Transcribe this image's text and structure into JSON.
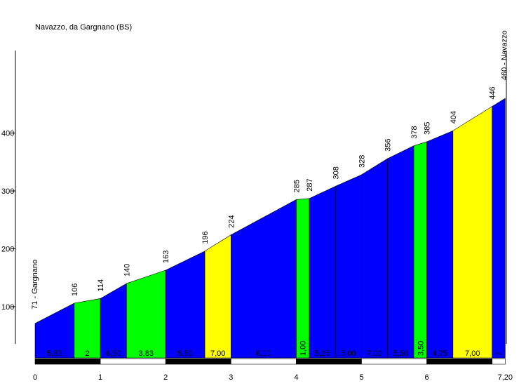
{
  "chart_data": {
    "type": "area",
    "title": "Navazzo, da Gargnano (BS)",
    "start_label": "71 - Gargnano",
    "end_label": "460 - Navazzo",
    "x_ticks": [
      "0",
      "1",
      "2",
      "3",
      "4",
      "5",
      "6",
      "7,20"
    ],
    "y_ticks": [
      "100",
      "200",
      "300",
      "400"
    ],
    "xlim": [
      0,
      7.2
    ],
    "ylim": [
      30,
      560
    ],
    "points": [
      {
        "km": 0,
        "elev": 71,
        "label": ""
      },
      {
        "km": 0.6,
        "elev": 106,
        "label": "106"
      },
      {
        "km": 1.0,
        "elev": 114,
        "label": "114"
      },
      {
        "km": 1.4,
        "elev": 140,
        "label": "140"
      },
      {
        "km": 2.0,
        "elev": 163,
        "label": "163"
      },
      {
        "km": 2.6,
        "elev": 196,
        "label": "196"
      },
      {
        "km": 3.0,
        "elev": 224,
        "label": "224"
      },
      {
        "km": 4.0,
        "elev": 285,
        "label": "285"
      },
      {
        "km": 4.2,
        "elev": 287,
        "label": "287"
      },
      {
        "km": 4.6,
        "elev": 308,
        "label": "308"
      },
      {
        "km": 5.0,
        "elev": 328,
        "label": "328"
      },
      {
        "km": 5.4,
        "elev": 356,
        "label": "356"
      },
      {
        "km": 5.8,
        "elev": 378,
        "label": "378"
      },
      {
        "km": 6.0,
        "elev": 385,
        "label": "385"
      },
      {
        "km": 6.4,
        "elev": 404,
        "label": "404"
      },
      {
        "km": 7.0,
        "elev": 446,
        "label": "446"
      },
      {
        "km": 7.2,
        "elev": 460,
        "label": ""
      }
    ],
    "segments": [
      {
        "gradient": "5,83",
        "color": "#0000ff"
      },
      {
        "gradient": "2",
        "color": "#00ff00"
      },
      {
        "gradient": "6,50",
        "color": "#0000ff"
      },
      {
        "gradient": "3,83",
        "color": "#00ff00"
      },
      {
        "gradient": "5,50",
        "color": "#0000ff"
      },
      {
        "gradient": "7,00",
        "color": "#ffff00"
      },
      {
        "gradient": "6,10",
        "color": "#0000ff"
      },
      {
        "gradient": "1,00",
        "color": "#00ff00"
      },
      {
        "gradient": "5,25",
        "color": "#0000ff"
      },
      {
        "gradient": "5,00",
        "color": "#0000ff"
      },
      {
        "gradient": "7,00",
        "color": "#0000ff"
      },
      {
        "gradient": "5,50",
        "color": "#0000ff"
      },
      {
        "gradient": "3,50",
        "color": "#00ff00"
      },
      {
        "gradient": "4,75",
        "color": "#0000ff"
      },
      {
        "gradient": "7,00",
        "color": "#ffff00"
      },
      {
        "gradient": "7",
        "color": "#0000ff"
      }
    ]
  }
}
